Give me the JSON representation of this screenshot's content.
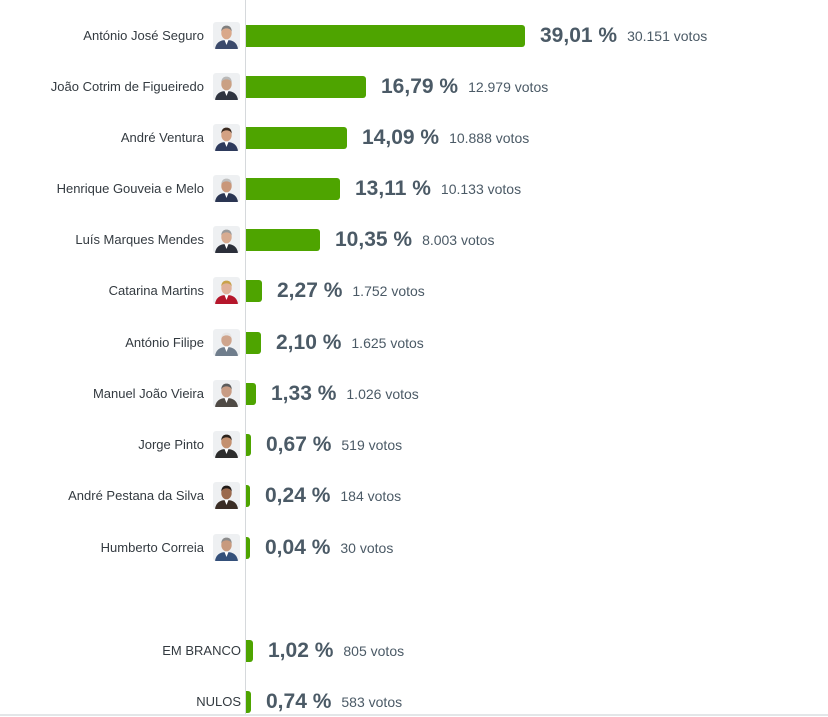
{
  "chart_data": {
    "type": "bar",
    "orientation": "horizontal",
    "unit_suffix": "%",
    "votes_suffix": "votos",
    "xlim": [
      0,
      39.01
    ],
    "categories": [
      "António José Seguro",
      "João Cotrim de Figueiredo",
      "André Ventura",
      "Henrique Gouveia e Melo",
      "Luís Marques Mendes",
      "Catarina Martins",
      "António Filipe",
      "Manuel João Vieira",
      "Jorge Pinto",
      "André Pestana da Silva",
      "Humberto Correia",
      "EM BRANCO",
      "NULOS"
    ],
    "values": [
      39.01,
      16.79,
      14.09,
      13.11,
      10.35,
      2.27,
      2.1,
      1.33,
      0.67,
      0.24,
      0.04,
      1.02,
      0.74
    ],
    "value_labels": [
      "39,01 %",
      "16,79 %",
      "14,09 %",
      "13,11 %",
      "10,35 %",
      "2,27 %",
      "2,10 %",
      "1,33 %",
      "0,67 %",
      "0,24 %",
      "0,04 %",
      "1,02 %",
      "0,74 %"
    ],
    "votes": [
      30151,
      12979,
      10888,
      10133,
      8003,
      1752,
      1625,
      1026,
      519,
      184,
      30,
      805,
      583
    ],
    "vote_labels": [
      "30.151 votos",
      "12.979 votos",
      "10.888 votos",
      "10.133 votos",
      "8.003 votos",
      "1.752 votos",
      "1.625 votos",
      "1.026 votos",
      "519 votos",
      "184 votos",
      "30 votos",
      "805 votos",
      "583 votos"
    ],
    "has_photo": [
      true,
      true,
      true,
      true,
      true,
      true,
      true,
      true,
      true,
      true,
      true,
      false,
      false
    ],
    "bar_color": "#4ea400",
    "grid": false
  }
}
